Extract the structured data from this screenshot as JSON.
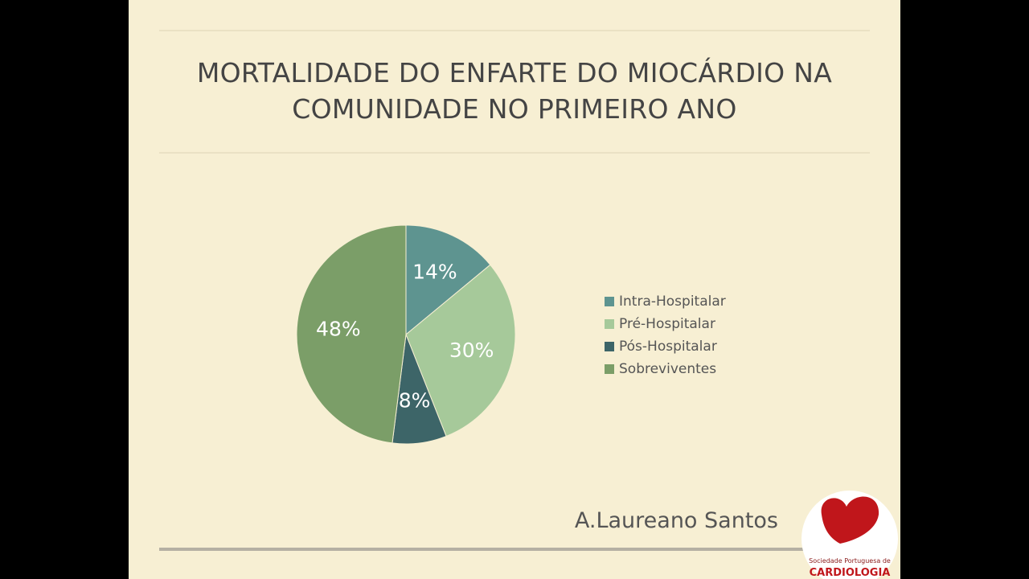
{
  "chart_data": {
    "type": "pie",
    "title": "MORTALIDADE DO ENFARTE DO MIOCÁRDIO NA COMUNIDADE NO PRIMEIRO ANO",
    "categories": [
      "Intra-Hospitalar",
      "Pré-Hospitalar",
      "Pós-Hospitalar",
      "Sobreviventes"
    ],
    "values": [
      14,
      30,
      8,
      48
    ],
    "value_labels": [
      "14%",
      "30%",
      "8%",
      "48%"
    ],
    "colors": [
      "#5e9490",
      "#a6c99a",
      "#3d6568",
      "#7b9e68"
    ],
    "legend": "right"
  },
  "author": "A.Laureano Santos",
  "logo": {
    "line1": "Sociedade Portuguesa de",
    "line2": "CARDIOLOGIA"
  }
}
